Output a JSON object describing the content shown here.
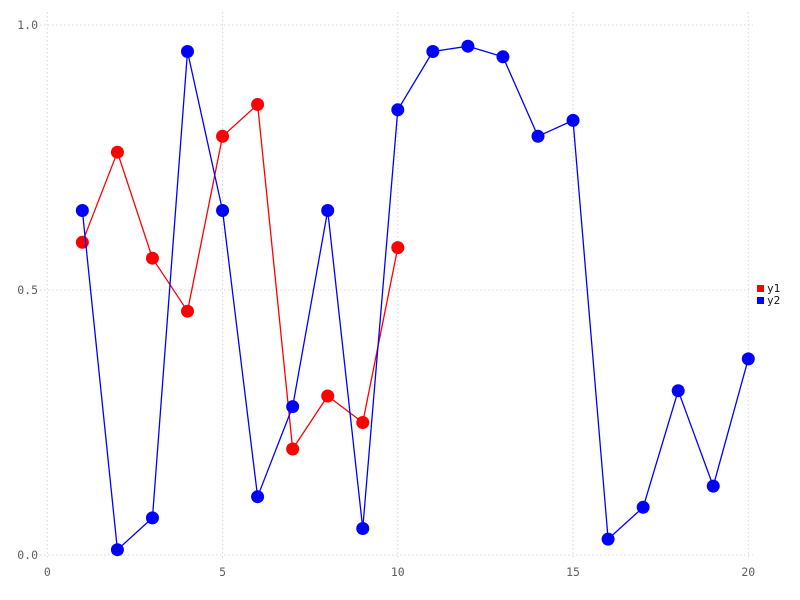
{
  "chart_data": {
    "type": "line",
    "title": "",
    "xlabel": "",
    "ylabel": "",
    "xlim": [
      0,
      20
    ],
    "ylim": [
      0.0,
      1.0
    ],
    "grid": true,
    "grid_style": "dotted",
    "grid_color": "#d6d6e4",
    "xticks": [
      0,
      5,
      10,
      15,
      20
    ],
    "xticklabels": [
      "0",
      "5",
      "10",
      "15",
      "20"
    ],
    "yticks": [
      0.0,
      0.5,
      1.0
    ],
    "yticklabels": [
      "0.0",
      "0.5",
      "1.0"
    ],
    "legend_position": "right",
    "series": [
      {
        "name": "y1",
        "color": "#ff0000",
        "marker": "circle",
        "x": [
          1,
          2,
          3,
          4,
          5,
          6,
          7,
          8,
          9,
          10
        ],
        "values": [
          0.59,
          0.76,
          0.56,
          0.46,
          0.79,
          0.85,
          0.2,
          0.3,
          0.25,
          0.58
        ]
      },
      {
        "name": "y2",
        "color": "#0000ff",
        "marker": "circle",
        "x": [
          1,
          2,
          3,
          4,
          5,
          6,
          7,
          8,
          9,
          10,
          11,
          12,
          13,
          14,
          15,
          16,
          17,
          18,
          19,
          20
        ],
        "values": [
          0.65,
          0.01,
          0.07,
          0.95,
          0.65,
          0.11,
          0.28,
          0.65,
          0.05,
          0.84,
          0.95,
          0.96,
          0.94,
          0.79,
          0.82,
          0.03,
          0.09,
          0.31,
          0.13,
          0.37
        ]
      }
    ]
  }
}
